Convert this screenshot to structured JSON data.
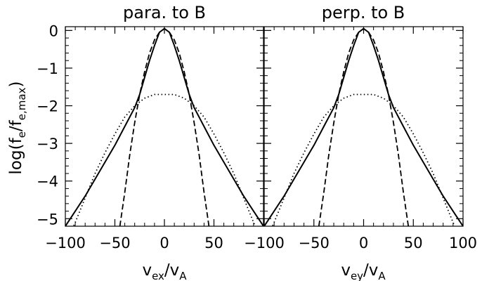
{
  "chart_data": {
    "type": "line",
    "ylabel": "log(f_e/f_e,max)",
    "panels": [
      {
        "title": "para. to B",
        "xlabel": "v_ex/v_A",
        "xlabel_main": "v",
        "xlabel_sub": "ex",
        "xlabel_sep": "/v",
        "xlabel_sub2": "A",
        "xlim": [
          -100,
          100
        ],
        "ylim": [
          -5.2,
          0.1
        ],
        "xticks": [
          -100,
          -50,
          0,
          50,
          100
        ],
        "xtick_labels": [
          "−100",
          "−50",
          "0",
          "50",
          ""
        ],
        "series": [
          {
            "style": "solid",
            "x": [
              -100,
              -90,
              -80,
              -70,
              -60,
              -50,
              -40,
              -30,
              -25,
              -20,
              -15,
              -10,
              -5,
              0,
              5,
              10,
              15,
              20,
              25,
              30,
              40,
              50,
              60,
              70,
              80,
              90,
              100
            ],
            "y": [
              -5.2,
              -4.8,
              -4.4,
              -3.95,
              -3.5,
              -3.05,
              -2.55,
              -2.05,
              -1.7,
              -1.25,
              -0.8,
              -0.4,
              -0.05,
              0.05,
              -0.05,
              -0.4,
              -0.8,
              -1.25,
              -1.7,
              -2.05,
              -2.55,
              -3.05,
              -3.5,
              -3.95,
              -4.4,
              -4.8,
              -5.2
            ]
          },
          {
            "style": "dashed",
            "x": [
              -45,
              -40,
              -35,
              -30,
              -25,
              -20,
              -15,
              -10,
              -5,
              0,
              5,
              10,
              15,
              20,
              25,
              30,
              35,
              40,
              45
            ],
            "y": [
              -5.2,
              -4.3,
              -3.3,
              -2.45,
              -1.7,
              -1.1,
              -0.6,
              -0.25,
              -0.05,
              0.05,
              -0.05,
              -0.25,
              -0.6,
              -1.1,
              -1.7,
              -2.45,
              -3.3,
              -4.3,
              -5.2
            ]
          },
          {
            "style": "dotted",
            "x": [
              -100,
              -90,
              -80,
              -70,
              -60,
              -50,
              -40,
              -30,
              -20,
              -10,
              0,
              10,
              20,
              30,
              40,
              50,
              60,
              70,
              80,
              90,
              100
            ],
            "y": [
              -5.7,
              -5.1,
              -4.45,
              -3.8,
              -3.25,
              -2.75,
              -2.3,
              -2.0,
              -1.8,
              -1.7,
              -1.7,
              -1.7,
              -1.8,
              -2.0,
              -2.3,
              -2.75,
              -3.25,
              -3.8,
              -4.45,
              -5.1,
              -5.7
            ]
          }
        ]
      },
      {
        "title": "perp. to B",
        "xlabel": "v_ey/v_A",
        "xlabel_main": "v",
        "xlabel_sub": "ey",
        "xlabel_sep": "/v",
        "xlabel_sub2": "A",
        "xlim": [
          -100,
          100
        ],
        "ylim": [
          -5.2,
          0.1
        ],
        "xticks": [
          -100,
          -50,
          0,
          50,
          100
        ],
        "xtick_labels": [
          "−100",
          "−50",
          "0",
          "50",
          "100"
        ],
        "series": [
          {
            "style": "solid",
            "x": [
              -100,
              -90,
              -80,
              -70,
              -60,
              -50,
              -40,
              -30,
              -25,
              -20,
              -15,
              -10,
              -5,
              0,
              5,
              10,
              15,
              20,
              25,
              30,
              40,
              50,
              60,
              70,
              80,
              90,
              100
            ],
            "y": [
              -5.2,
              -4.8,
              -4.4,
              -3.95,
              -3.5,
              -3.05,
              -2.55,
              -2.05,
              -1.7,
              -1.25,
              -0.8,
              -0.4,
              -0.05,
              0.05,
              -0.05,
              -0.4,
              -0.8,
              -1.25,
              -1.7,
              -2.05,
              -2.55,
              -3.05,
              -3.5,
              -3.95,
              -4.4,
              -4.8,
              -5.2
            ]
          },
          {
            "style": "dashed",
            "x": [
              -45,
              -40,
              -35,
              -30,
              -25,
              -20,
              -15,
              -10,
              -5,
              0,
              5,
              10,
              15,
              20,
              25,
              30,
              35,
              40,
              45
            ],
            "y": [
              -5.2,
              -4.3,
              -3.3,
              -2.45,
              -1.7,
              -1.1,
              -0.6,
              -0.25,
              -0.05,
              0.05,
              -0.05,
              -0.25,
              -0.6,
              -1.1,
              -1.7,
              -2.45,
              -3.3,
              -4.3,
              -5.2
            ]
          },
          {
            "style": "dotted",
            "x": [
              -100,
              -90,
              -80,
              -70,
              -60,
              -50,
              -40,
              -30,
              -20,
              -10,
              0,
              10,
              20,
              30,
              40,
              50,
              60,
              70,
              80,
              90,
              100
            ],
            "y": [
              -5.7,
              -5.1,
              -4.45,
              -3.8,
              -3.25,
              -2.75,
              -2.3,
              -2.0,
              -1.8,
              -1.7,
              -1.7,
              -1.7,
              -1.8,
              -2.0,
              -2.3,
              -2.75,
              -3.25,
              -3.8,
              -4.45,
              -5.1,
              -5.7
            ]
          }
        ]
      }
    ],
    "yticks": [
      0,
      -1,
      -2,
      -3,
      -4,
      -5
    ],
    "ytick_labels": [
      "0",
      "−1",
      "−2",
      "−3",
      "−4",
      "−5"
    ],
    "ylabel_parts": {
      "pre": "log(f",
      "sub1": "e",
      "mid": "/f",
      "sub2": "e,max",
      "post": ")"
    },
    "grid": false
  }
}
